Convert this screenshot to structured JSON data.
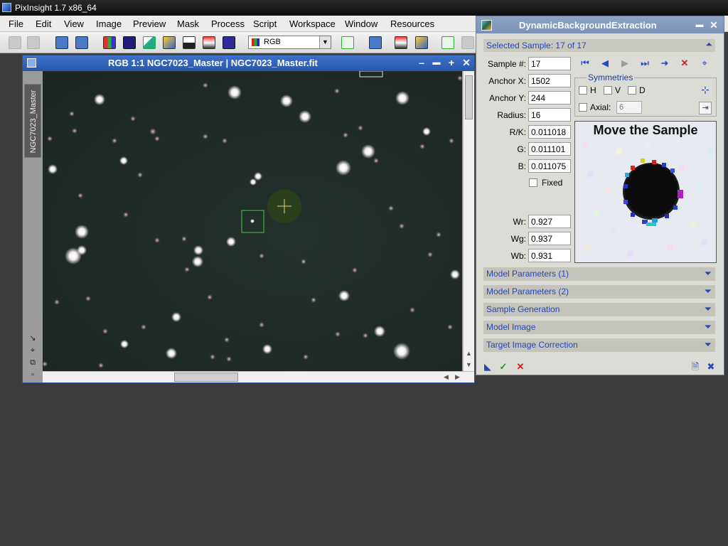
{
  "app": {
    "title": "PixInsight 1.7 x86_64"
  },
  "menubar": {
    "items": [
      "File",
      "Edit",
      "View",
      "Image",
      "Preview",
      "Mask",
      "Process",
      "Script",
      "Workspace",
      "Window",
      "Resources"
    ]
  },
  "toolbar": {
    "channel_select": "RGB"
  },
  "image_window": {
    "title": "RGB 1:1 NGC7023_Master | NGC7023_Master.fit",
    "side_tab": "NGC7023_Master",
    "buttons": {
      "minimize": "–",
      "shade": "▬",
      "maximize": "+",
      "close": "✕"
    }
  },
  "dbe": {
    "title": "DynamicBackgroundExtraction",
    "title_buttons": {
      "shade": "▬",
      "close": "✕"
    },
    "selected_sample": "Selected Sample: 17 of 17",
    "fields": {
      "sample_label": "Sample #:",
      "sample": "17",
      "anchor_x_label": "Anchor X:",
      "anchor_x": "1502",
      "anchor_y_label": "Anchor Y:",
      "anchor_y": "244",
      "radius_label": "Radius:",
      "radius": "16",
      "rk_label": "R/K:",
      "rk": "0.011018",
      "g_label": "G:",
      "g": "0.011101",
      "b_label": "B:",
      "b": "0.011075",
      "fixed_label": "Fixed",
      "wr_label": "Wr:",
      "wr": "0.927",
      "wg_label": "Wg:",
      "wg": "0.937",
      "wb_label": "Wb:",
      "wb": "0.931"
    },
    "symmetries": {
      "title": "Symmetries",
      "h": "H",
      "v": "V",
      "d": "D",
      "axial_label": "Axial:",
      "axial_value": "6"
    },
    "preview_caption": "Move the Sample",
    "sections": [
      "Model Parameters (1)",
      "Model Parameters (2)",
      "Sample Generation",
      "Model Image",
      "Target Image Correction"
    ]
  },
  "colors": {
    "accent": "#2446b8",
    "titlebar_blue": "#2757ad",
    "sample_box": "#3ecf3e",
    "cursor_cross": "#e8d27a"
  }
}
